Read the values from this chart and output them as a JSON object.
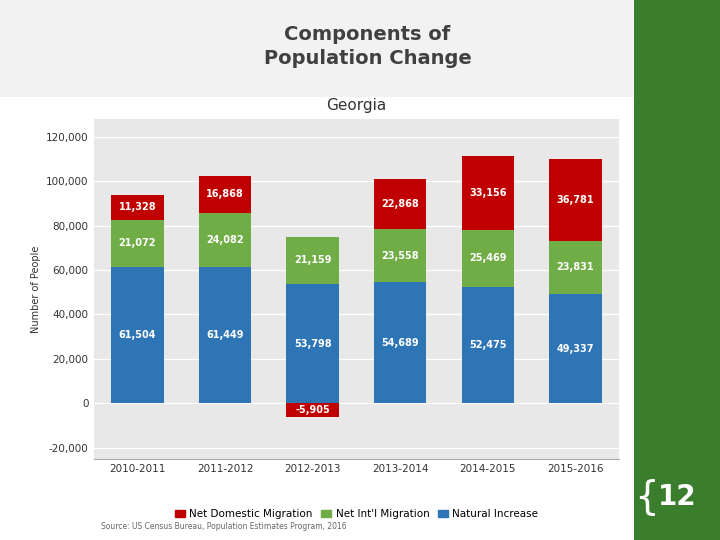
{
  "title": "Georgia",
  "categories": [
    "2010-2011",
    "2011-2012",
    "2012-2013",
    "2013-2014",
    "2014-2015",
    "2015-2016"
  ],
  "natural_increase": [
    61504,
    61449,
    53798,
    54689,
    52475,
    49337
  ],
  "net_intl_migration": [
    21072,
    24082,
    21159,
    23558,
    25469,
    23831
  ],
  "net_dom_migration": [
    11328,
    16868,
    -5905,
    22868,
    33156,
    36781
  ],
  "color_natural": "#2e75b6",
  "color_intl": "#70ad47",
  "color_dom": "#c00000",
  "yticks": [
    -20000,
    0,
    20000,
    40000,
    60000,
    80000,
    100000,
    120000
  ],
  "ylim": [
    -25000,
    128000
  ],
  "chart_bg": "#e8e8e8",
  "slide_bg": "#ffffff",
  "legend_labels": [
    "Net Domestic Migration",
    "Net Int'l Migration",
    "Natural Increase"
  ],
  "source_text": "Source: US Census Bureau, Population Estimates Program, 2016",
  "title_fontsize": 11,
  "label_fontsize": 7,
  "tick_fontsize": 7.5,
  "green_sidebar_color": "#3a7d2c",
  "top_bar_color": "#f0f0f0"
}
